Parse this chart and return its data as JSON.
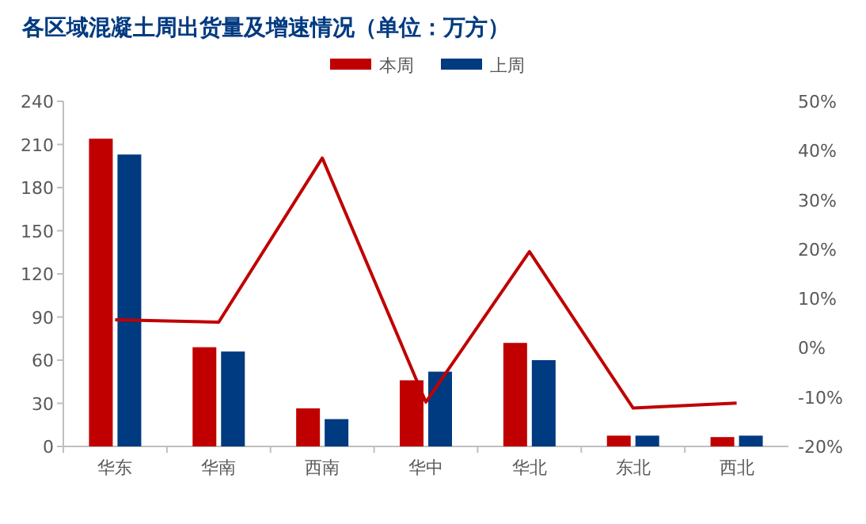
{
  "chart_data": {
    "type": "bar",
    "title": "各区域混凝土周出货量及增速情况（单位：万方）",
    "categories": [
      "华东",
      "华南",
      "西南",
      "华中",
      "华北",
      "东北",
      "西北"
    ],
    "series": [
      {
        "name": "本周",
        "color": "#c00000",
        "values": [
          214,
          69,
          26.5,
          46,
          72,
          7.5,
          6.5
        ]
      },
      {
        "name": "上周",
        "color": "#003a80",
        "values": [
          203,
          66,
          19,
          52,
          60,
          7.5,
          7.5
        ]
      },
      {
        "type": "line",
        "axis": "y2",
        "color": "#c00000",
        "values": [
          5.7,
          5.2,
          38.5,
          -11,
          19.5,
          -12.2,
          -11.2
        ]
      }
    ],
    "ylim": [
      0,
      240
    ],
    "yticks": [
      0,
      30,
      60,
      90,
      120,
      150,
      180,
      210,
      240
    ],
    "y2lim": [
      -20,
      50
    ],
    "y2ticks": [
      {
        "value": -20,
        "label": "-20%"
      },
      {
        "value": -10,
        "label": "-10%"
      },
      {
        "value": 0,
        "label": "0%"
      },
      {
        "value": 10,
        "label": "10%"
      },
      {
        "value": 20,
        "label": "20%"
      },
      {
        "value": 30,
        "label": "30%"
      },
      {
        "value": 40,
        "label": "40%"
      },
      {
        "value": 50,
        "label": "50%"
      }
    ],
    "legend": "top",
    "grid": false
  }
}
